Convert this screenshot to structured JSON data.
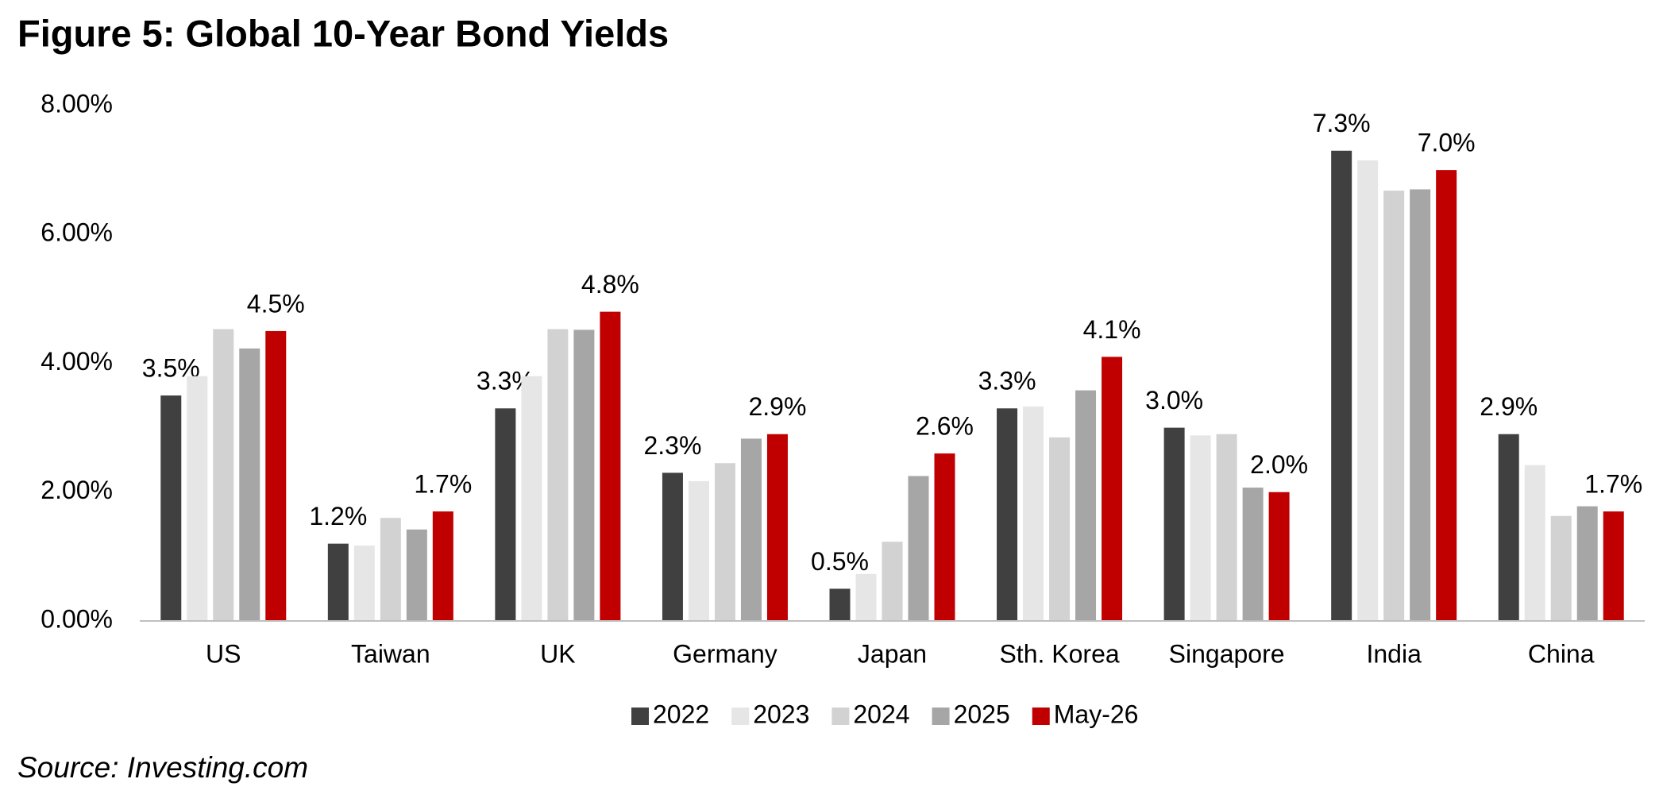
{
  "chart_data": {
    "type": "bar",
    "title": "Figure 5: Global 10-Year Bond Yields",
    "source": "Source: Investing.com",
    "categories": [
      "US",
      "Taiwan",
      "UK",
      "Germany",
      "Japan",
      "Sth. Korea",
      "Singapore",
      "India",
      "China"
    ],
    "series": [
      {
        "name": "2022",
        "color": "#404040",
        "values": [
          3.5,
          1.2,
          3.3,
          2.3,
          0.5,
          3.3,
          3.0,
          7.3,
          2.9
        ],
        "value_labels": [
          "3.5%",
          "1.2%",
          "3.3%",
          "2.3%",
          "0.5%",
          "3.3%",
          "3.0%",
          "7.3%",
          "2.9%"
        ]
      },
      {
        "name": "2023",
        "color": "#e6e6e6",
        "values": [
          3.8,
          1.17,
          3.8,
          2.17,
          0.73,
          3.33,
          2.88,
          7.15,
          2.42
        ]
      },
      {
        "name": "2024",
        "color": "#d2d2d2",
        "values": [
          4.53,
          1.6,
          4.53,
          2.45,
          1.23,
          2.85,
          2.9,
          6.68,
          1.63
        ]
      },
      {
        "name": "2025",
        "color": "#a6a6a6",
        "values": [
          4.23,
          1.42,
          4.52,
          2.83,
          2.25,
          3.58,
          2.07,
          6.7,
          1.78
        ]
      },
      {
        "name": "May-26",
        "color": "#c00000",
        "values": [
          4.5,
          1.7,
          4.8,
          2.9,
          2.6,
          4.1,
          2.0,
          7.0,
          1.7
        ],
        "value_labels": [
          "4.5%",
          "1.7%",
          "4.8%",
          "2.9%",
          "2.6%",
          "4.1%",
          "2.0%",
          "7.0%",
          "1.7%"
        ]
      }
    ],
    "ylim": [
      0,
      8
    ],
    "yticks": [
      {
        "value": 0,
        "label": "0.00%"
      },
      {
        "value": 2,
        "label": "2.00%"
      },
      {
        "value": 4,
        "label": "4.00%"
      },
      {
        "value": 6,
        "label": "6.00%"
      },
      {
        "value": 8,
        "label": "8.00%"
      }
    ],
    "grid": false,
    "legend": "bottom"
  }
}
